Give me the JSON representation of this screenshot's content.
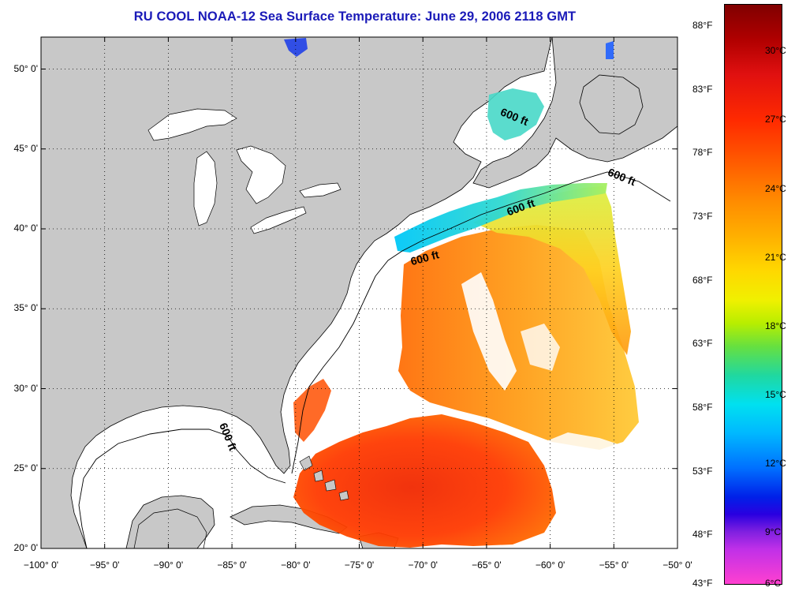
{
  "title": "RU COOL  NOAA-12  Sea Surface Temperature:  June 29, 2006 2118 GMT",
  "map": {
    "lon_range": [
      -100,
      -50
    ],
    "lat_range": [
      20,
      52
    ],
    "x_ticks": [
      -100,
      -95,
      -90,
      -85,
      -80,
      -75,
      -70,
      -65,
      -60,
      -55,
      -50
    ],
    "x_tick_labels": [
      "−100° 0'",
      "−95° 0'",
      "−90° 0'",
      "−85° 0'",
      "−80° 0'",
      "−75° 0'",
      "−70° 0'",
      "−65° 0'",
      "−60° 0'",
      "−55° 0'",
      "−50° 0'"
    ],
    "y_ticks": [
      20,
      25,
      30,
      35,
      40,
      45,
      50
    ],
    "y_tick_labels": [
      "20° 0'",
      "25° 0'",
      "30° 0'",
      "35° 0'",
      "40° 0'",
      "45° 0'",
      "50° 0'"
    ],
    "grid": "dotted",
    "land_color": "#c8c8c8",
    "no_data_color": "#ffffff",
    "contour_label": "600 ft",
    "contour_label_count": 5
  },
  "colorbar": {
    "fahrenheit_labels": [
      "88°F",
      "83°F",
      "78°F",
      "73°F",
      "68°F",
      "63°F",
      "58°F",
      "53°F",
      "48°F",
      "43°F"
    ],
    "celsius_labels": [
      "30°C",
      "27°C",
      "24°C",
      "21°C",
      "18°C",
      "15°C",
      "12°C",
      "9°C",
      "6°C"
    ],
    "fahrenheit_values": [
      88,
      83,
      78,
      73,
      68,
      63,
      58,
      53,
      48,
      43
    ],
    "celsius_values": [
      30,
      27,
      24,
      21,
      18,
      15,
      12,
      9,
      6
    ],
    "colors_top_to_bottom": [
      "#800000",
      "#e01010",
      "#ff5a00",
      "#ffb000",
      "#f0f000",
      "#66e040",
      "#00e0f0",
      "#0070ff",
      "#2a00e0",
      "#8020e0",
      "#ff40d0"
    ]
  }
}
